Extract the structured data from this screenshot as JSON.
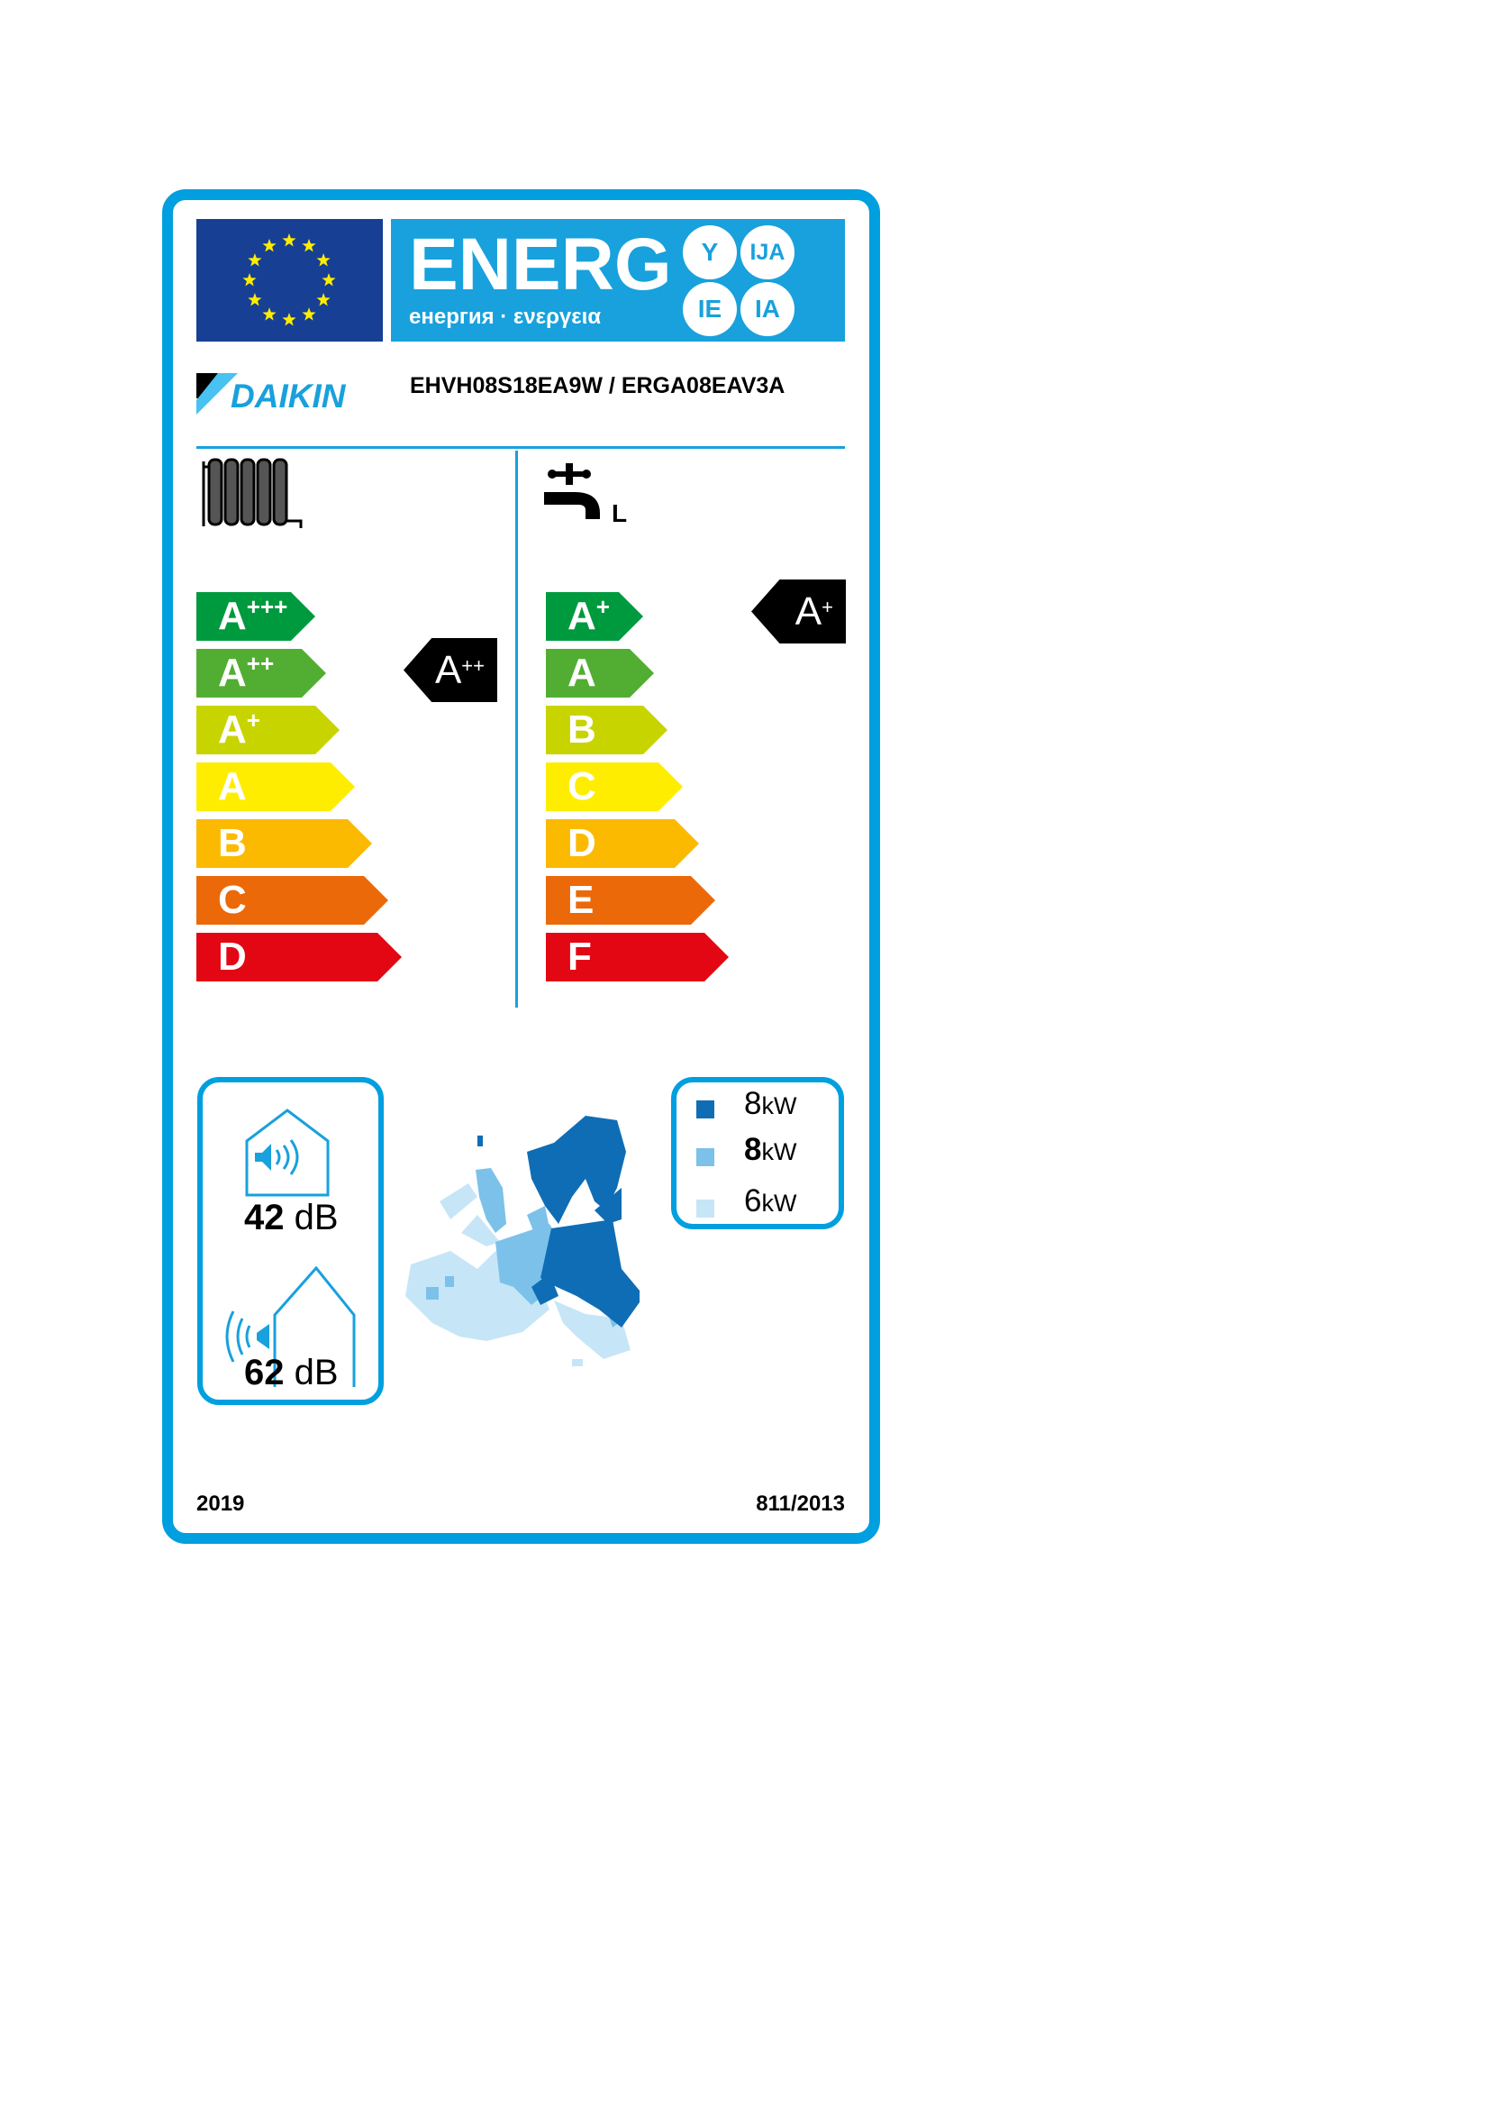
{
  "header": {
    "energy_word": "ENERG",
    "energy_subtitle": "енергия · ενεργεια",
    "language_suffixes": [
      "Y",
      "IJA",
      "IE",
      "IA"
    ],
    "eu_flag": "eu-flag-icon"
  },
  "supplier": {
    "brand": "DAIKIN",
    "model": "EHVH08S18EA9W / ERGA08EAV3A"
  },
  "space_heating": {
    "icon": "radiator-icon",
    "scale": [
      {
        "base": "A",
        "sup": "+++",
        "color": "#009a3e"
      },
      {
        "base": "A",
        "sup": "++",
        "color": "#52ae32"
      },
      {
        "base": "A",
        "sup": "+",
        "color": "#c8d400"
      },
      {
        "base": "A",
        "sup": "",
        "color": "#ffed00"
      },
      {
        "base": "B",
        "sup": "",
        "color": "#fbba00"
      },
      {
        "base": "C",
        "sup": "",
        "color": "#eb6909"
      },
      {
        "base": "D",
        "sup": "",
        "color": "#e30613"
      }
    ],
    "rating": {
      "base": "A",
      "sup": "++"
    }
  },
  "water_heating": {
    "icon": "tap-icon",
    "load_profile": "L",
    "scale": [
      {
        "base": "A",
        "sup": "+",
        "color": "#009a3e"
      },
      {
        "base": "A",
        "sup": "",
        "color": "#52ae32"
      },
      {
        "base": "B",
        "sup": "",
        "color": "#c8d400"
      },
      {
        "base": "C",
        "sup": "",
        "color": "#ffed00"
      },
      {
        "base": "D",
        "sup": "",
        "color": "#fbba00"
      },
      {
        "base": "E",
        "sup": "",
        "color": "#eb6909"
      },
      {
        "base": "F",
        "sup": "",
        "color": "#e30613"
      }
    ],
    "rating": {
      "base": "A",
      "sup": "+"
    }
  },
  "noise": {
    "indoor": {
      "value": "42",
      "unit": "dB"
    },
    "outdoor": {
      "value": "62",
      "unit": "dB"
    }
  },
  "climate_outputs": [
    {
      "value": "8",
      "unit": "kW",
      "color": "#0f6db5",
      "bold": false
    },
    {
      "value": "8",
      "unit": "kW",
      "color": "#7cc1ea",
      "bold": true
    },
    {
      "value": "6",
      "unit": "kW",
      "color": "#c6e6f7",
      "bold": false
    }
  ],
  "footer": {
    "year": "2019",
    "regulation": "811/2013"
  }
}
